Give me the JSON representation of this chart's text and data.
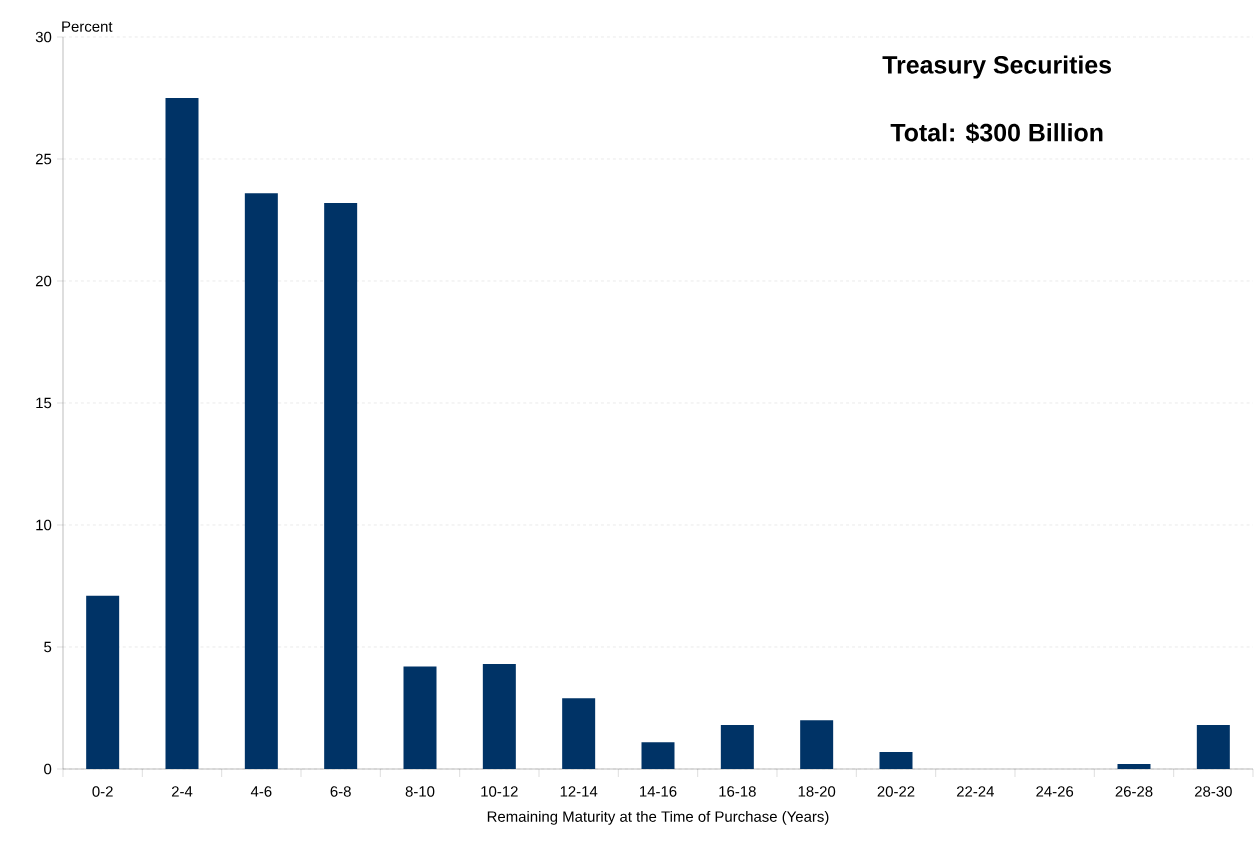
{
  "chart_data": {
    "type": "bar",
    "title": "Treasury Securities",
    "subtitle": "Total: $300 Billion",
    "ylabel": "Percent",
    "xlabel": "Remaining Maturity at the Time of Purchase (Years)",
    "categories": [
      "0-2",
      "2-4",
      "4-6",
      "6-8",
      "8-10",
      "10-12",
      "12-14",
      "14-16",
      "16-18",
      "18-20",
      "20-22",
      "22-24",
      "24-26",
      "26-28",
      "28-30"
    ],
    "values": [
      7.1,
      27.5,
      23.6,
      23.2,
      4.2,
      4.3,
      2.9,
      1.1,
      1.8,
      2.0,
      0.7,
      0,
      0,
      0.2,
      1.8
    ],
    "color": "#003366",
    "ylim": [
      0,
      30
    ],
    "yticks": [
      0,
      5,
      10,
      15,
      20,
      25,
      30
    ],
    "grid": "y"
  }
}
